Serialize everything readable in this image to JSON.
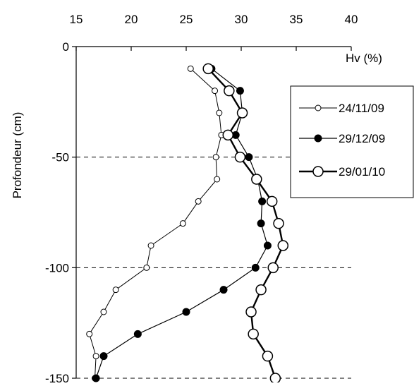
{
  "chart_data": {
    "type": "line",
    "xlabel": "Hv (%)",
    "ylabel": "Profondeur (cm)",
    "xlim": [
      15,
      40
    ],
    "ylim": [
      -150,
      0
    ],
    "x_ticks": [
      "15",
      "20",
      "25",
      "30",
      "35",
      "40"
    ],
    "y_ticks": [
      "0",
      "-50",
      "-100",
      "-150"
    ],
    "x_axis_position": "top",
    "grid": "horizontal dashed at -50, -100, -150",
    "legend_position": "right",
    "series": [
      {
        "name": "24/11/09",
        "marker": "small open circle",
        "line": "thin",
        "points": [
          [
            25.4,
            -10
          ],
          [
            27.6,
            -20
          ],
          [
            28.0,
            -30
          ],
          [
            28.2,
            -40
          ],
          [
            27.7,
            -50
          ],
          [
            27.8,
            -60
          ],
          [
            26.1,
            -70
          ],
          [
            24.7,
            -80
          ],
          [
            21.8,
            -90
          ],
          [
            21.4,
            -100
          ],
          [
            18.6,
            -110
          ],
          [
            17.5,
            -120
          ],
          [
            16.2,
            -130
          ],
          [
            16.8,
            -140
          ],
          [
            16.7,
            -150
          ]
        ]
      },
      {
        "name": "29/12/09",
        "marker": "filled circle",
        "line": "thin",
        "points": [
          [
            27.3,
            -10
          ],
          [
            29.9,
            -20
          ],
          [
            30.1,
            -30
          ],
          [
            29.5,
            -40
          ],
          [
            30.7,
            -50
          ],
          [
            31.5,
            -60
          ],
          [
            31.9,
            -70
          ],
          [
            31.8,
            -80
          ],
          [
            32.4,
            -90
          ],
          [
            31.3,
            -100
          ],
          [
            28.4,
            -110
          ],
          [
            25.0,
            -120
          ],
          [
            20.6,
            -130
          ],
          [
            17.5,
            -140
          ],
          [
            16.8,
            -150
          ]
        ]
      },
      {
        "name": "29/01/10",
        "marker": "large open circle",
        "line": "thick",
        "points": [
          [
            27.0,
            -10
          ],
          [
            28.9,
            -20
          ],
          [
            30.1,
            -30
          ],
          [
            28.8,
            -40
          ],
          [
            29.9,
            -50
          ],
          [
            31.4,
            -60
          ],
          [
            32.8,
            -70
          ],
          [
            33.4,
            -80
          ],
          [
            33.8,
            -90
          ],
          [
            32.9,
            -100
          ],
          [
            31.8,
            -110
          ],
          [
            30.9,
            -120
          ],
          [
            31.1,
            -130
          ],
          [
            32.4,
            -140
          ],
          [
            33.1,
            -150
          ]
        ]
      }
    ]
  }
}
